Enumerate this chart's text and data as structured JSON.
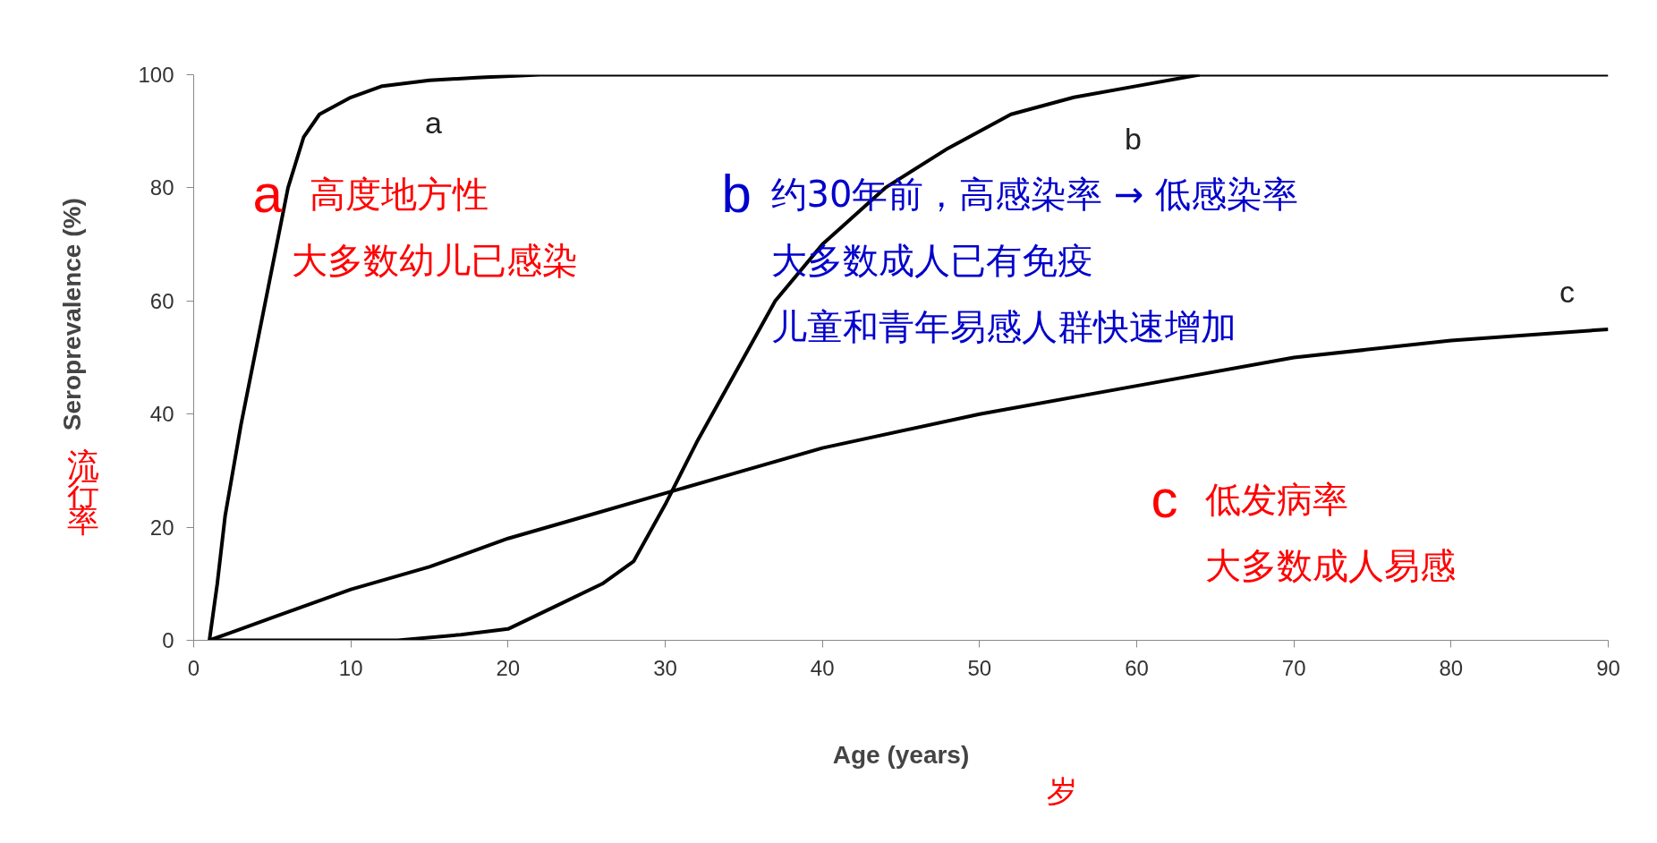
{
  "chart_data": {
    "type": "line",
    "xlabel": "Age (years)",
    "ylabel": "Seroprevalence (%)",
    "series": [
      {
        "color": "#000000",
        "x": [
          1,
          1.5,
          2,
          3,
          4,
          5,
          6,
          7,
          8,
          10,
          12,
          15,
          18,
          22,
          90
        ],
        "values": [
          0,
          10,
          22,
          38,
          52,
          66,
          80,
          89,
          93,
          96,
          98,
          99,
          99.5,
          100,
          100
        ]
      },
      {
        "color": "#000000",
        "x": [
          1,
          13,
          17,
          20,
          23,
          26,
          28,
          30,
          32,
          35,
          37,
          40,
          44,
          48,
          52,
          56,
          60,
          64
        ],
        "values": [
          0,
          0,
          1,
          2,
          6,
          10,
          14,
          24,
          35,
          50,
          60,
          70,
          80,
          87,
          93,
          96,
          98,
          100
        ]
      },
      {
        "color": "#000000",
        "x": [
          1,
          5,
          10,
          15,
          20,
          25,
          30,
          35,
          40,
          50,
          60,
          70,
          80,
          90
        ],
        "values": [
          0,
          4,
          9,
          13,
          18,
          22,
          26,
          30,
          34,
          40,
          45,
          50,
          53,
          55
        ]
      }
    ],
    "xlim": [
      0,
      90
    ],
    "ylim": [
      0,
      100
    ],
    "xticks": [
      0,
      10,
      20,
      30,
      40,
      50,
      60,
      70,
      80,
      90
    ],
    "yticks": [
      0,
      20,
      40,
      60,
      80,
      100
    ],
    "grid": false,
    "marker": "none",
    "line_style": "solid",
    "annotations": [
      "a",
      "b",
      "c",
      "a",
      "高度地方性",
      "大多数幼儿已感染",
      "b",
      "约30年前，高感染率 → 低感染率",
      "大多数成人已有免疫",
      "儿童和青年易感人群快速增加",
      "c",
      "低发病率",
      "大多数成人易感",
      "流行率",
      "岁"
    ]
  }
}
